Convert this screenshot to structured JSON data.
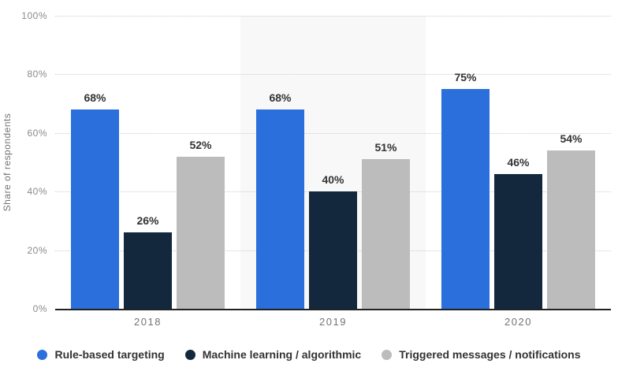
{
  "chart_data": {
    "type": "bar",
    "categories": [
      "2018",
      "2019",
      "2020"
    ],
    "series": [
      {
        "name": "Rule-based targeting",
        "color": "#2a6fdb",
        "values": [
          68,
          68,
          75
        ]
      },
      {
        "name": "Machine learning / algorithmic",
        "color": "#13283d",
        "values": [
          26,
          40,
          46
        ]
      },
      {
        "name": "Triggered messages / notifications",
        "color": "#bcbcbc",
        "values": [
          52,
          51,
          54
        ]
      }
    ],
    "title": "",
    "xlabel": "",
    "ylabel": "Share of respondents",
    "ylim": [
      0,
      100
    ],
    "yticks": [
      0,
      20,
      40,
      60,
      80,
      100
    ],
    "ytick_suffix": "%",
    "value_label_suffix": "%",
    "grid": "horizontal-dotted",
    "legend_position": "bottom",
    "highlighted_category": "2019",
    "colors": {
      "band": "#f8f8f8",
      "axis": "#222222",
      "grid": "#cccccc",
      "tick_text": "#8a8a8a",
      "xlabel_text": "#737373",
      "value_text": "#333333",
      "legend_text": "#333333"
    }
  }
}
